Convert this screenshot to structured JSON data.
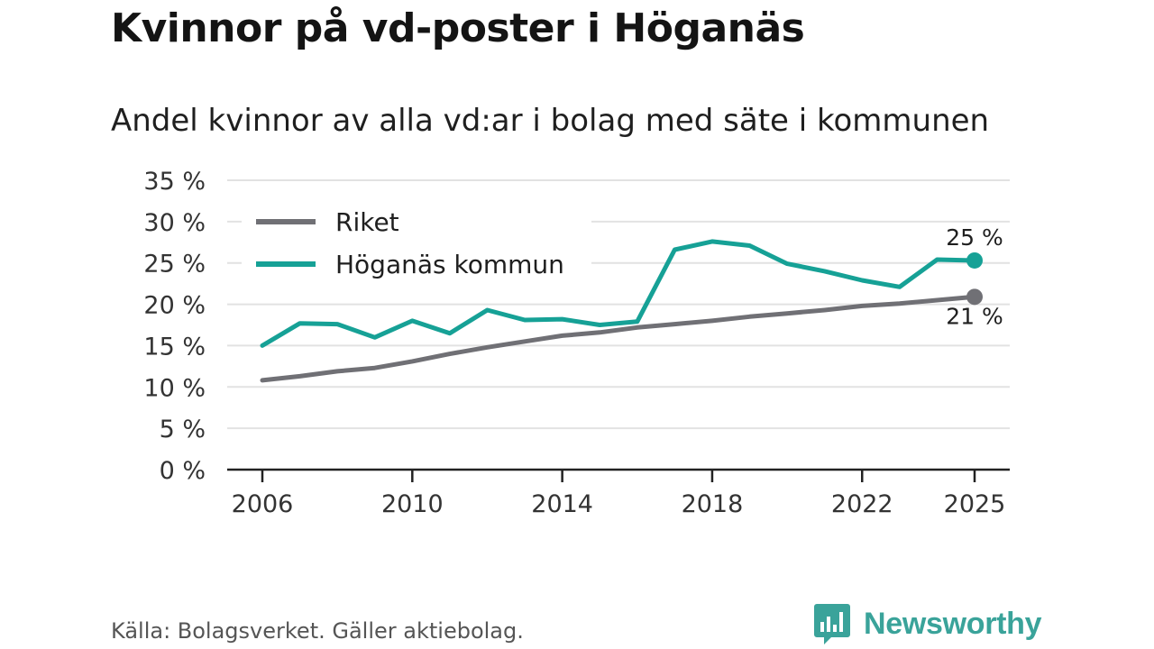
{
  "title": "Kvinnor på vd-poster i Höganäs",
  "subtitle": "Andel kvinnor av alla vd:ar i bolag med säte i kommunen",
  "source": "Källa: Bolagsverket. Gäller aktiebolag.",
  "brand": {
    "name": "Newsworthy",
    "logo_icon": "newsworthy-bar-chart-icon"
  },
  "colors": {
    "riket": "#707075",
    "hoganas": "#16a196",
    "grid": "#e2e2e2",
    "axis": "#222222"
  },
  "chart_data": {
    "type": "line",
    "title": "Kvinnor på vd-poster i Höganäs",
    "subtitle": "Andel kvinnor av alla vd:ar i bolag med säte i kommunen",
    "xlabel": "",
    "ylabel": "",
    "x": [
      2006,
      2007,
      2008,
      2009,
      2010,
      2011,
      2012,
      2013,
      2014,
      2015,
      2016,
      2017,
      2018,
      2019,
      2020,
      2021,
      2022,
      2023,
      2024,
      2025
    ],
    "xlim": [
      2006,
      2025
    ],
    "xticks": [
      "2006",
      "2010",
      "2014",
      "2018",
      "2022",
      "2025"
    ],
    "ylim": [
      0,
      35
    ],
    "yticks": [
      "0 %",
      "5 %",
      "10 %",
      "15 %",
      "20 %",
      "25 %",
      "30 %",
      "35 %"
    ],
    "grid": true,
    "legend_position": "top-left",
    "series": [
      {
        "name": "Riket",
        "color_key": "riket",
        "values": [
          10.8,
          11.3,
          11.9,
          12.3,
          13.1,
          14.0,
          14.8,
          15.5,
          16.2,
          16.6,
          17.2,
          17.6,
          18.0,
          18.5,
          18.9,
          19.3,
          19.8,
          20.1,
          20.5,
          20.9
        ],
        "end_label": "21 %"
      },
      {
        "name": "Höganäs kommun",
        "color_key": "hoganas",
        "values": [
          15.0,
          17.7,
          17.6,
          16.0,
          18.0,
          16.5,
          19.3,
          18.1,
          18.2,
          17.5,
          17.9,
          26.6,
          27.6,
          27.1,
          24.9,
          24.0,
          22.9,
          22.1,
          25.4,
          25.3
        ],
        "end_label": "25 %"
      }
    ]
  }
}
